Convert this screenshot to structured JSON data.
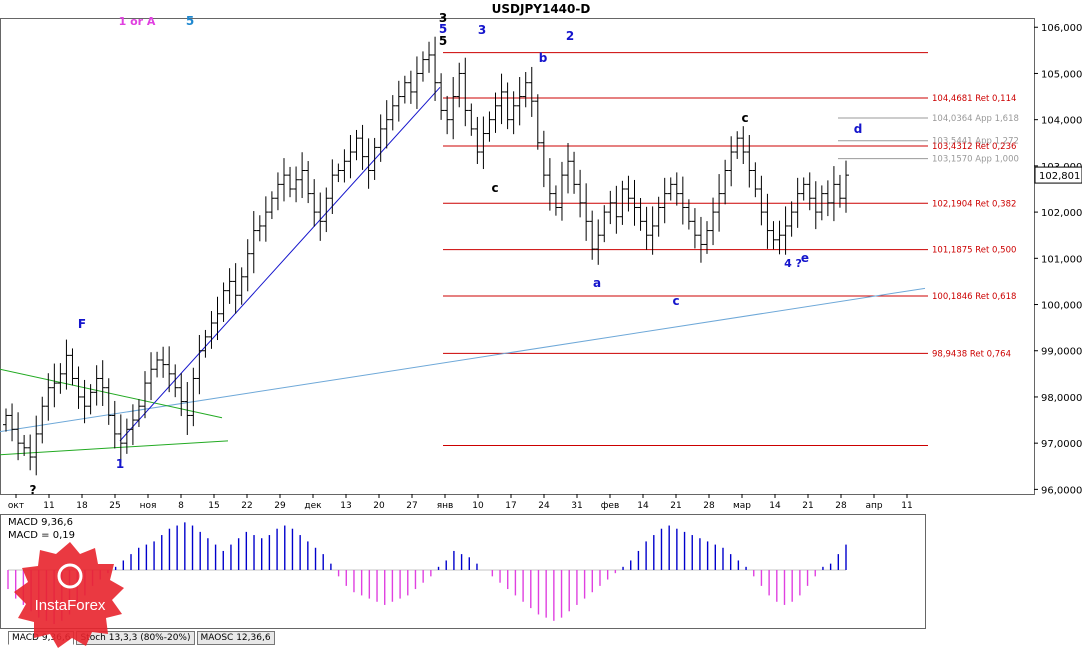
{
  "window": {
    "title": "USDJPY1440-D"
  },
  "indicator_tabs": [
    {
      "label": "MACD 9,36,6",
      "active": true
    },
    {
      "label": "Stoch 13,3,3 (80%-20%)",
      "active": false
    },
    {
      "label": "MAOSC 12,36,6",
      "active": false
    }
  ],
  "watermark": {
    "brand": "InstaForex",
    "color": "#e8242c"
  },
  "colors": {
    "price_line": "#cc0000",
    "wave_blue": "#1515cc",
    "wave_magenta": "#e040e0",
    "wave_cyan": "#1e88d0",
    "trend_green": "#22aa22",
    "trend_lightblue": "#6ea8d8",
    "macd_histogram": "#0000cc",
    "macd_signal": "#e040e0",
    "current_price_box": "#ffffff"
  },
  "chart_data": [
    {
      "type": "candlestick",
      "title": "USDJPY1440-D",
      "y_axis": {
        "min": 95.9,
        "max": 106.2,
        "ticks": [
          "106,0000",
          "105,0000",
          "104,0000",
          "103,0000",
          "102,0000",
          "101,0000",
          "100,0000",
          "99,0000",
          "98,0000",
          "97,0000",
          "96,0000"
        ],
        "tick_values": [
          106,
          105,
          104,
          103,
          102,
          101,
          100,
          99,
          98,
          97,
          96
        ]
      },
      "x_axis": {
        "ticks": [
          "окт",
          "11",
          "18",
          "25",
          "ноя",
          "8",
          "15",
          "22",
          "29",
          "дек",
          "13",
          "20",
          "27",
          "янв",
          "10",
          "17",
          "24",
          "31",
          "фев",
          "14",
          "21",
          "28",
          "мар",
          "14",
          "21",
          "28",
          "апр",
          "11"
        ]
      },
      "current_price": {
        "label": "102,801",
        "value": 102.801
      },
      "price_series_close": [
        97.6,
        97.3,
        97.0,
        96.9,
        96.7,
        97.2,
        97.8,
        98.2,
        98.3,
        98.5,
        98.9,
        98.4,
        98.0,
        97.8,
        98.1,
        98.4,
        98.2,
        97.6,
        97.2,
        97.0,
        97.3,
        97.5,
        97.8,
        98.3,
        98.6,
        98.8,
        98.7,
        98.5,
        98.2,
        97.9,
        97.6,
        98.4,
        99.0,
        99.3,
        99.6,
        99.8,
        100.3,
        100.5,
        100.2,
        100.6,
        101.1,
        101.6,
        101.7,
        102.0,
        102.3,
        102.6,
        102.8,
        102.5,
        102.7,
        102.9,
        102.4,
        102.0,
        101.8,
        102.3,
        102.8,
        102.9,
        103.1,
        103.3,
        103.6,
        103.2,
        102.9,
        103.4,
        103.8,
        104.0,
        104.3,
        104.5,
        104.8,
        104.6,
        105.0,
        105.3,
        105.4,
        104.8,
        104.2,
        104.0,
        104.5,
        105.0,
        104.2,
        103.8,
        103.3,
        103.7,
        104.0,
        104.3,
        104.6,
        104.0,
        104.3,
        104.5,
        104.8,
        104.4,
        103.5,
        102.8,
        102.4,
        102.1,
        102.8,
        103.1,
        102.6,
        102.2,
        101.8,
        101.2,
        101.5,
        102.0,
        102.2,
        101.9,
        102.5,
        102.3,
        102.1,
        101.8,
        101.5,
        101.7,
        102.1,
        102.4,
        102.6,
        102.4,
        102.1,
        101.8,
        101.5,
        101.3,
        101.6,
        102.0,
        102.4,
        102.9,
        103.3,
        103.6,
        103.3,
        102.9,
        102.5,
        102.0,
        101.6,
        101.4,
        101.5,
        101.7,
        102.0,
        102.4,
        102.6,
        102.3,
        102.0,
        102.4,
        102.2,
        102.6,
        102.3,
        102.8
      ],
      "fibonacci_levels": [
        {
          "label": "104,4681 Ret 0,114",
          "value": 104.4681,
          "color": "#cc0000"
        },
        {
          "label": "104,0364 App 1,618",
          "value": 104.0364,
          "color": "#999999"
        },
        {
          "label": "103,5441 App 1,272",
          "value": 103.5441,
          "color": "#999999"
        },
        {
          "label": "103,4312 Ret 0,236",
          "value": 103.4312,
          "color": "#cc0000"
        },
        {
          "label": "103,1570 App 1,000",
          "value": 103.157,
          "color": "#999999"
        },
        {
          "label": "102,1904 Ret 0,382",
          "value": 102.1904,
          "color": "#cc0000"
        },
        {
          "label": "101,1875 Ret 0,500",
          "value": 101.1875,
          "color": "#cc0000"
        },
        {
          "label": "100,1846 Ret 0,618",
          "value": 100.1846,
          "color": "#cc0000"
        },
        {
          "label": "98,9438 Ret 0,764",
          "value": 98.9438,
          "color": "#cc0000"
        }
      ],
      "unlabeled_levels": [
        105.45,
        96.95
      ],
      "wave_labels": [
        {
          "text": "1 or A",
          "color": "#e040e0"
        },
        {
          "text": "5",
          "color": "#1e88d0"
        },
        {
          "text": "3",
          "color": "#1515cc"
        },
        {
          "text": "3",
          "color": "#000000"
        },
        {
          "text": "5",
          "color": "#1515cc"
        },
        {
          "text": "5",
          "color": "#000000"
        },
        {
          "text": "b",
          "color": "#1515cc"
        },
        {
          "text": "c",
          "color": "#000000"
        },
        {
          "text": "d",
          "color": "#1515cc"
        },
        {
          "text": "c",
          "color": "#000000"
        },
        {
          "text": "a",
          "color": "#1515cc"
        },
        {
          "text": "c",
          "color": "#1515cc"
        },
        {
          "text": "4 ?",
          "color": "#1515cc"
        },
        {
          "text": "e",
          "color": "#1515cc"
        },
        {
          "text": "?",
          "color": "#000000"
        },
        {
          "text": "F",
          "color": "#1515cc"
        },
        {
          "text": "1",
          "color": "#1515cc"
        },
        {
          "text": "2",
          "color": "#1515cc"
        }
      ]
    },
    {
      "type": "bar",
      "title": "MACD 9,36,6",
      "series": [
        {
          "name": "MACD 9,36,6",
          "value_label": "MACD 9,36,6",
          "values": [
            -0.06,
            -0.09,
            -0.11,
            -0.13,
            -0.15,
            -0.16,
            -0.17,
            -0.16,
            -0.14,
            -0.11,
            -0.08,
            -0.05,
            -0.03,
            -0.01,
            0.01,
            0.03,
            0.05,
            0.07,
            0.08,
            0.09,
            0.11,
            0.13,
            0.14,
            0.15,
            0.14,
            0.12,
            0.1,
            0.08,
            0.06,
            0.08,
            0.1,
            0.12,
            0.11,
            0.1,
            0.11,
            0.13,
            0.14,
            0.13,
            0.11,
            0.09,
            0.07,
            0.05,
            0.02,
            -0.02,
            -0.05,
            -0.07,
            -0.08,
            -0.09,
            -0.1,
            -0.11,
            -0.1,
            -0.09,
            -0.08,
            -0.06,
            -0.04,
            -0.02,
            0.01,
            0.03,
            0.06,
            0.05,
            0.04,
            0.02,
            0.0,
            -0.02,
            -0.04,
            -0.06,
            -0.08,
            -0.1,
            -0.12,
            -0.14,
            -0.15,
            -0.16,
            -0.15,
            -0.13,
            -0.11,
            -0.09,
            -0.07,
            -0.05,
            -0.03,
            -0.01,
            0.01,
            0.03,
            0.06,
            0.09,
            0.11,
            0.13,
            0.14,
            0.13,
            0.12,
            0.11,
            0.1,
            0.09,
            0.08,
            0.07,
            0.05,
            0.03,
            0.01,
            -0.02,
            -0.05,
            -0.08,
            -0.1,
            -0.11,
            -0.1,
            -0.08,
            -0.05,
            -0.02,
            0.01,
            0.02,
            0.05,
            0.08
          ]
        },
        {
          "name": "MACD 9,36,6",
          "value_label": "MACD = 0,19"
        }
      ]
    }
  ]
}
